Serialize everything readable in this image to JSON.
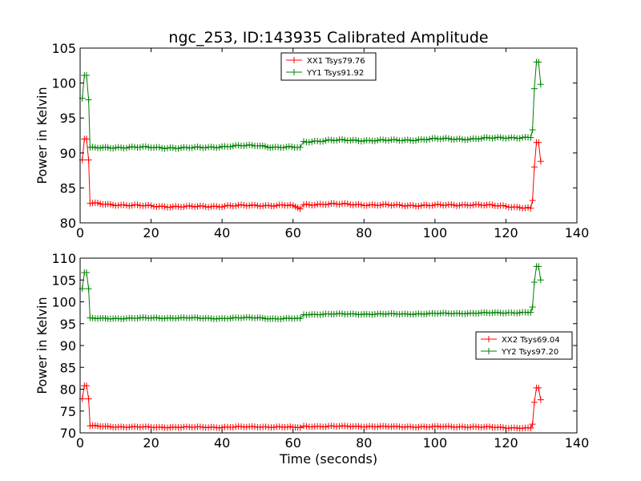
{
  "title": "ngc_253, ID:143935 Calibrated Amplitude",
  "chart_data": [
    {
      "type": "line",
      "title": "ngc_253, ID:143935 Calibrated Amplitude",
      "xlabel": "",
      "ylabel": "Power in Kelvin",
      "xlim": [
        0,
        140
      ],
      "ylim": [
        80,
        105
      ],
      "xticks": [
        "0",
        "20",
        "40",
        "60",
        "80",
        "100",
        "120",
        "140"
      ],
      "yticks": [
        "80",
        "85",
        "90",
        "95",
        "100",
        "105"
      ],
      "grid": false,
      "legend_position": "top-center",
      "series": [
        {
          "name": "XX1 Tsys79.76",
          "color": "#ff0000",
          "points": [
            [
              0.6,
              89.0
            ],
            [
              1.2,
              92.0
            ],
            [
              1.8,
              92.0
            ],
            [
              2.4,
              89.0
            ],
            [
              2.8,
              82.8
            ],
            [
              10,
              82.6
            ],
            [
              20,
              82.4
            ],
            [
              30,
              82.3
            ],
            [
              40,
              82.4
            ],
            [
              50,
              82.5
            ],
            [
              60,
              82.5
            ],
            [
              62,
              82.0
            ],
            [
              63,
              82.6
            ],
            [
              70,
              82.7
            ],
            [
              80,
              82.6
            ],
            [
              90,
              82.5
            ],
            [
              100,
              82.5
            ],
            [
              110,
              82.6
            ],
            [
              120,
              82.4
            ],
            [
              127,
              82.1
            ],
            [
              127.5,
              83.2
            ],
            [
              128,
              88.0
            ],
            [
              128.6,
              91.5
            ],
            [
              129.2,
              91.5
            ],
            [
              129.8,
              88.8
            ]
          ]
        },
        {
          "name": "YY1 Tsys91.92",
          "color": "#008000",
          "points": [
            [
              0.6,
              97.8
            ],
            [
              1.2,
              101.1
            ],
            [
              1.8,
              101.1
            ],
            [
              2.4,
              97.6
            ],
            [
              2.8,
              90.7
            ],
            [
              10,
              90.8
            ],
            [
              20,
              90.8
            ],
            [
              30,
              90.7
            ],
            [
              40,
              90.9
            ],
            [
              50,
              91.1
            ],
            [
              55,
              90.8
            ],
            [
              62,
              90.8
            ],
            [
              63,
              91.6
            ],
            [
              70,
              91.8
            ],
            [
              80,
              91.8
            ],
            [
              90,
              91.8
            ],
            [
              100,
              92.0
            ],
            [
              110,
              92.0
            ],
            [
              120,
              92.2
            ],
            [
              127,
              92.2
            ],
            [
              127.5,
              93.3
            ],
            [
              128,
              99.2
            ],
            [
              128.6,
              103.0
            ],
            [
              129.2,
              103.0
            ],
            [
              129.8,
              99.8
            ]
          ]
        }
      ]
    },
    {
      "type": "line",
      "title": "",
      "xlabel": "Time (seconds)",
      "ylabel": "Power in Kelvin",
      "xlim": [
        0,
        140
      ],
      "ylim": [
        70,
        110
      ],
      "xticks": [
        "0",
        "20",
        "40",
        "60",
        "80",
        "100",
        "120",
        "140"
      ],
      "yticks": [
        "70",
        "75",
        "80",
        "85",
        "90",
        "95",
        "100",
        "105",
        "110"
      ],
      "grid": false,
      "legend_position": "center-right",
      "series": [
        {
          "name": "XX2 Tsys69.04",
          "color": "#ff0000",
          "points": [
            [
              0.6,
              77.8
            ],
            [
              1.2,
              80.8
            ],
            [
              1.8,
              80.8
            ],
            [
              2.4,
              77.8
            ],
            [
              2.8,
              71.6
            ],
            [
              10,
              71.4
            ],
            [
              20,
              71.3
            ],
            [
              30,
              71.3
            ],
            [
              40,
              71.3
            ],
            [
              50,
              71.4
            ],
            [
              60,
              71.3
            ],
            [
              62,
              71.2
            ],
            [
              63,
              71.5
            ],
            [
              70,
              71.5
            ],
            [
              80,
              71.5
            ],
            [
              90,
              71.4
            ],
            [
              100,
              71.4
            ],
            [
              110,
              71.4
            ],
            [
              120,
              71.2
            ],
            [
              127,
              71.1
            ],
            [
              127.5,
              72.0
            ],
            [
              128,
              77.0
            ],
            [
              128.6,
              80.3
            ],
            [
              129.2,
              80.3
            ],
            [
              129.8,
              77.6
            ]
          ]
        },
        {
          "name": "YY2 Tsys97.20",
          "color": "#008000",
          "points": [
            [
              0.6,
              103.0
            ],
            [
              1.2,
              106.7
            ],
            [
              1.8,
              106.7
            ],
            [
              2.4,
              103.0
            ],
            [
              2.8,
              96.2
            ],
            [
              10,
              96.2
            ],
            [
              20,
              96.3
            ],
            [
              30,
              96.3
            ],
            [
              40,
              96.2
            ],
            [
              50,
              96.4
            ],
            [
              55,
              96.1
            ],
            [
              62,
              96.2
            ],
            [
              63,
              97.1
            ],
            [
              70,
              97.2
            ],
            [
              80,
              97.2
            ],
            [
              90,
              97.2
            ],
            [
              100,
              97.3
            ],
            [
              110,
              97.4
            ],
            [
              120,
              97.5
            ],
            [
              127,
              97.6
            ],
            [
              127.5,
              98.8
            ],
            [
              128,
              104.5
            ],
            [
              128.6,
              108.1
            ],
            [
              129.2,
              108.1
            ],
            [
              129.8,
              105.0
            ]
          ]
        }
      ]
    }
  ]
}
